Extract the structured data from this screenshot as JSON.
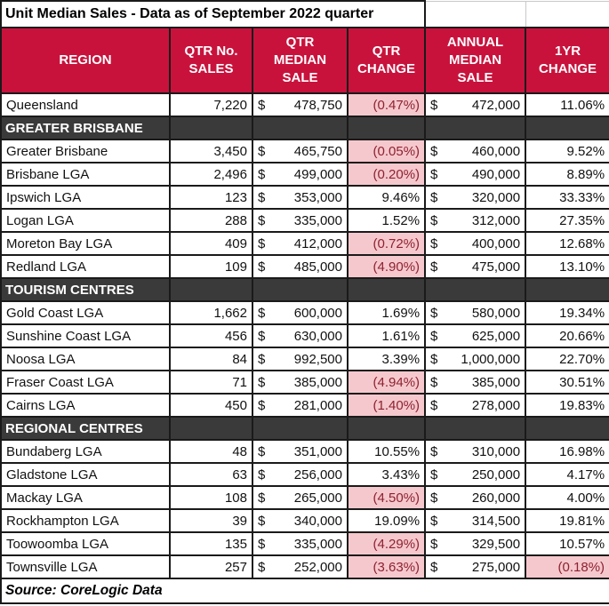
{
  "colors": {
    "header_bg": "#C8123C",
    "header_text": "#FFFFFF",
    "section_bg": "#3A3A3A",
    "section_text": "#FFFFFF",
    "negative_bg": "#F5C8CD",
    "negative_text": "#8E2230",
    "grid": "#1A1A1A",
    "body_text": "#111111"
  },
  "chart_data": {
    "type": "table",
    "title": "Unit Median Sales - Data as of September 2022 quarter",
    "source": "Source: CoreLogic Data",
    "currency_symbol": "$",
    "columns": [
      "REGION",
      "QTR No. SALES",
      "QTR MEDIAN SALE",
      "QTR CHANGE",
      "ANNUAL MEDIAN SALE",
      "1YR CHANGE"
    ],
    "header_lines": [
      [
        "REGION"
      ],
      [
        "QTR No.",
        "SALES"
      ],
      [
        "QTR",
        "MEDIAN",
        "SALE"
      ],
      [
        "QTR",
        "CHANGE"
      ],
      [
        "ANNUAL",
        "MEDIAN",
        "SALE"
      ],
      [
        "1YR",
        "CHANGE"
      ]
    ],
    "rows": [
      {
        "kind": "data",
        "region": "Queensland",
        "qtr_sales": "7,220",
        "qtr_median_sale": "478,750",
        "qtr_change": "(0.47%)",
        "qtr_change_negative": true,
        "annual_median_sale": "472,000",
        "yr_change": "11.06%",
        "yr_change_negative": false
      },
      {
        "kind": "section",
        "label": "GREATER BRISBANE"
      },
      {
        "kind": "data",
        "region": "Greater Brisbane",
        "qtr_sales": "3,450",
        "qtr_median_sale": "465,750",
        "qtr_change": "(0.05%)",
        "qtr_change_negative": true,
        "annual_median_sale": "460,000",
        "yr_change": "9.52%",
        "yr_change_negative": false
      },
      {
        "kind": "data",
        "region": "Brisbane LGA",
        "qtr_sales": "2,496",
        "qtr_median_sale": "499,000",
        "qtr_change": "(0.20%)",
        "qtr_change_negative": true,
        "annual_median_sale": "490,000",
        "yr_change": "8.89%",
        "yr_change_negative": false
      },
      {
        "kind": "data",
        "region": "Ipswich LGA",
        "qtr_sales": "123",
        "qtr_median_sale": "353,000",
        "qtr_change": "9.46%",
        "qtr_change_negative": false,
        "annual_median_sale": "320,000",
        "yr_change": "33.33%",
        "yr_change_negative": false
      },
      {
        "kind": "data",
        "region": "Logan LGA",
        "qtr_sales": "288",
        "qtr_median_sale": "335,000",
        "qtr_change": "1.52%",
        "qtr_change_negative": false,
        "annual_median_sale": "312,000",
        "yr_change": "27.35%",
        "yr_change_negative": false
      },
      {
        "kind": "data",
        "region": "Moreton Bay LGA",
        "qtr_sales": "409",
        "qtr_median_sale": "412,000",
        "qtr_change": "(0.72%)",
        "qtr_change_negative": true,
        "annual_median_sale": "400,000",
        "yr_change": "12.68%",
        "yr_change_negative": false
      },
      {
        "kind": "data",
        "region": "Redland LGA",
        "qtr_sales": "109",
        "qtr_median_sale": "485,000",
        "qtr_change": "(4.90%)",
        "qtr_change_negative": true,
        "annual_median_sale": "475,000",
        "yr_change": "13.10%",
        "yr_change_negative": false
      },
      {
        "kind": "section",
        "label": "TOURISM CENTRES"
      },
      {
        "kind": "data",
        "region": "Gold Coast LGA",
        "qtr_sales": "1,662",
        "qtr_median_sale": "600,000",
        "qtr_change": "1.69%",
        "qtr_change_negative": false,
        "annual_median_sale": "580,000",
        "yr_change": "19.34%",
        "yr_change_negative": false
      },
      {
        "kind": "data",
        "region": "Sunshine Coast LGA",
        "qtr_sales": "456",
        "qtr_median_sale": "630,000",
        "qtr_change": "1.61%",
        "qtr_change_negative": false,
        "annual_median_sale": "625,000",
        "yr_change": "20.66%",
        "yr_change_negative": false
      },
      {
        "kind": "data",
        "region": "Noosa LGA",
        "qtr_sales": "84",
        "qtr_median_sale": "992,500",
        "qtr_change": "3.39%",
        "qtr_change_negative": false,
        "annual_median_sale": "1,000,000",
        "yr_change": "22.70%",
        "yr_change_negative": false
      },
      {
        "kind": "data",
        "region": "Fraser Coast LGA",
        "qtr_sales": "71",
        "qtr_median_sale": "385,000",
        "qtr_change": "(4.94%)",
        "qtr_change_negative": true,
        "annual_median_sale": "385,000",
        "yr_change": "30.51%",
        "yr_change_negative": false
      },
      {
        "kind": "data",
        "region": "Cairns LGA",
        "qtr_sales": "450",
        "qtr_median_sale": "281,000",
        "qtr_change": "(1.40%)",
        "qtr_change_negative": true,
        "annual_median_sale": "278,000",
        "yr_change": "19.83%",
        "yr_change_negative": false
      },
      {
        "kind": "section",
        "label": "REGIONAL CENTRES"
      },
      {
        "kind": "data",
        "region": "Bundaberg LGA",
        "qtr_sales": "48",
        "qtr_median_sale": "351,000",
        "qtr_change": "10.55%",
        "qtr_change_negative": false,
        "annual_median_sale": "310,000",
        "yr_change": "16.98%",
        "yr_change_negative": false
      },
      {
        "kind": "data",
        "region": "Gladstone LGA",
        "qtr_sales": "63",
        "qtr_median_sale": "256,000",
        "qtr_change": "3.43%",
        "qtr_change_negative": false,
        "annual_median_sale": "250,000",
        "yr_change": "4.17%",
        "yr_change_negative": false
      },
      {
        "kind": "data",
        "region": "Mackay LGA",
        "qtr_sales": "108",
        "qtr_median_sale": "265,000",
        "qtr_change": "(4.50%)",
        "qtr_change_negative": true,
        "annual_median_sale": "260,000",
        "yr_change": "4.00%",
        "yr_change_negative": false
      },
      {
        "kind": "data",
        "region": "Rockhampton LGA",
        "qtr_sales": "39",
        "qtr_median_sale": "340,000",
        "qtr_change": "19.09%",
        "qtr_change_negative": false,
        "annual_median_sale": "314,500",
        "yr_change": "19.81%",
        "yr_change_negative": false
      },
      {
        "kind": "data",
        "region": "Toowoomba LGA",
        "qtr_sales": "135",
        "qtr_median_sale": "335,000",
        "qtr_change": "(4.29%)",
        "qtr_change_negative": true,
        "annual_median_sale": "329,500",
        "yr_change": "10.57%",
        "yr_change_negative": false
      },
      {
        "kind": "data",
        "region": "Townsville LGA",
        "qtr_sales": "257",
        "qtr_median_sale": "252,000",
        "qtr_change": "(3.63%)",
        "qtr_change_negative": true,
        "annual_median_sale": "275,000",
        "yr_change": "(0.18%)",
        "yr_change_negative": true
      }
    ]
  }
}
